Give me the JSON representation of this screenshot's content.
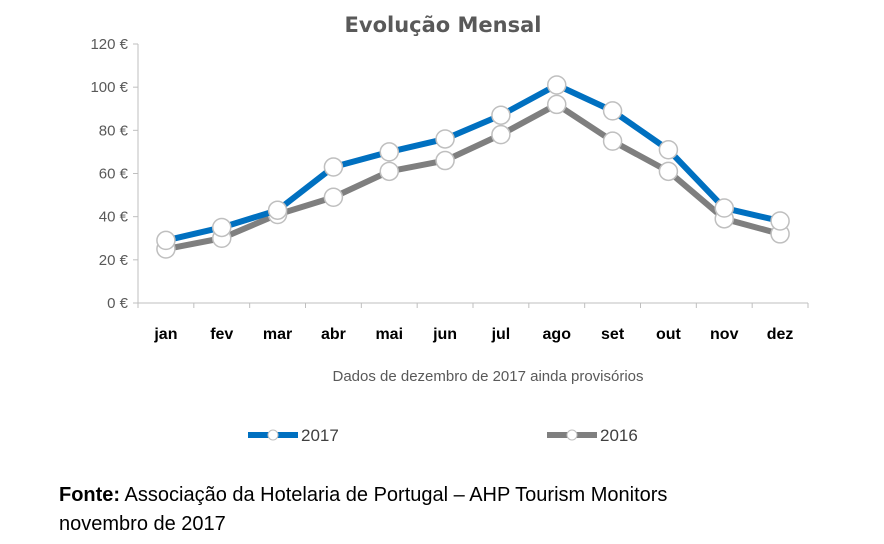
{
  "chart_data": {
    "type": "line",
    "title": "Evolução Mensal",
    "categories": [
      "jan",
      "fev",
      "mar",
      "abr",
      "mai",
      "jun",
      "jul",
      "ago",
      "set",
      "out",
      "nov",
      "dez"
    ],
    "ylim": [
      0,
      120
    ],
    "yticks": [
      0,
      20,
      40,
      60,
      80,
      100,
      120
    ],
    "ytick_labels": [
      "0 €",
      "20 €",
      "40 €",
      "60 €",
      "80 €",
      "100 €",
      "120 €"
    ],
    "xlabel": "",
    "ylabel": "",
    "grid": false,
    "legend_position": "bottom",
    "note": "Dados de dezembro de 2017 ainda provisórios",
    "series": [
      {
        "name": "2016",
        "color": "#7f7f7f",
        "values": [
          25,
          30,
          41,
          49,
          61,
          66,
          78,
          92,
          75,
          61,
          39,
          32
        ]
      },
      {
        "name": "2017",
        "color": "#0070c0",
        "values": [
          29,
          35,
          43,
          63,
          70,
          76,
          87,
          101,
          89,
          71,
          44,
          38
        ]
      }
    ]
  },
  "source": {
    "label": "Fonte:",
    "text": " Associação da Hotelaria de Portugal – AHP Tourism Monitors",
    "line2": "novembro de 2017"
  }
}
